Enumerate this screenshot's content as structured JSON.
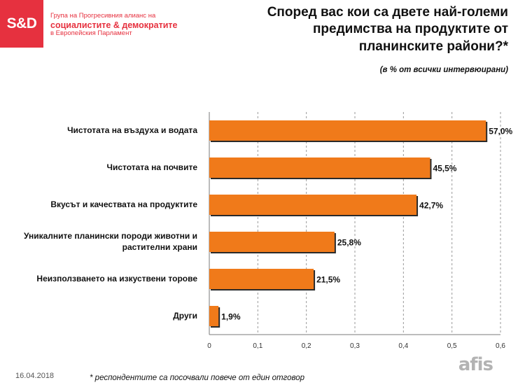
{
  "logo": {
    "text": "S&D"
  },
  "group": {
    "line1": "Група на Прогресивния алианс на",
    "line2": "социалистите & демократите",
    "line3": "в Европейския Парламент"
  },
  "date": "16.04.2018",
  "footnote": "* респондентите са посочвали повече от един отговор",
  "brand": "afis",
  "colors": {
    "bar": "#f07a1a",
    "bar_shadow": "#2a2a2a",
    "logo_red": "#e6313f"
  },
  "chart_data": {
    "type": "bar",
    "orientation": "horizontal",
    "title": "Според вас кои са двете най-големи предимства на продуктите от планинските райони?*",
    "subtitle": "(в % от всички интервюирани)",
    "categories": [
      "Чистотата на въздуха и водата",
      "Чистотата на почвите",
      "Вкусът и качествата на продуктите",
      "Уникалните планински породи животни и растителни храни",
      "Неизползването на изкуствени торове",
      "Други"
    ],
    "values": [
      0.57,
      0.455,
      0.427,
      0.258,
      0.215,
      0.019
    ],
    "data_labels": [
      "57,0%",
      "45,5%",
      "42,7%",
      "25,8%",
      "21,5%",
      "1,9%"
    ],
    "xlim": [
      0,
      0.6
    ],
    "xticks": [
      "0",
      "0,1",
      "0,2",
      "0,3",
      "0,4",
      "0,5",
      "0,6"
    ],
    "grid": true
  }
}
